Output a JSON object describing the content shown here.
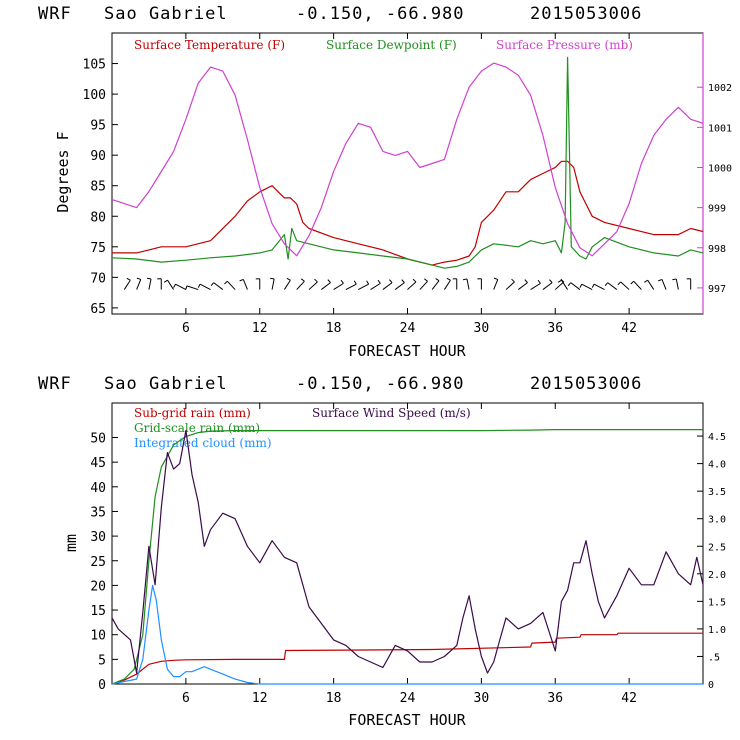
{
  "colors": {
    "temperature": "#c00000",
    "dewpoint": "#1f8f1f",
    "pressure": "#d040d0",
    "subgrid_rain": "#c00000",
    "gridscale_rain": "#1f8f1f",
    "integrated_cloud": "#1e90ff",
    "wind_speed": "#3a0a4a",
    "axis": "#000000"
  },
  "chart_data": [
    {
      "type": "line",
      "header": {
        "model": "WRF",
        "station": "Sao Gabriel",
        "coords": "-0.150, -66.980",
        "init_time": "2015053006"
      },
      "xlabel": "FORECAST HOUR",
      "ylabel": "Degrees F",
      "xlim": [
        0,
        48
      ],
      "x_ticks": [
        6,
        12,
        18,
        24,
        30,
        36,
        42
      ],
      "ylim": [
        64,
        110
      ],
      "y_ticks": [
        65,
        70,
        75,
        80,
        85,
        90,
        95,
        100,
        105
      ],
      "y2lim": [
        996.35,
        1003.35
      ],
      "y2_ticks": [
        997,
        998,
        999,
        1000,
        1001,
        1002
      ],
      "legend": [
        "Surface Temperature (F)",
        "Surface Dewpoint (F)",
        "Surface Pressure (mb)"
      ],
      "series": [
        {
          "name": "Surface Temperature (F)",
          "axis": "left",
          "x": [
            0,
            2,
            3,
            4,
            6,
            8,
            10,
            11,
            12,
            13,
            13.5,
            14,
            14.5,
            15,
            15.5,
            16,
            18,
            20,
            22,
            24,
            26,
            27,
            28,
            29,
            29.5,
            30,
            31,
            32,
            33,
            34,
            35,
            36,
            36.5,
            37,
            37.5,
            38,
            38.5,
            39,
            40,
            42,
            44,
            46,
            47,
            48
          ],
          "values": [
            74,
            74,
            74.5,
            75,
            75,
            76,
            80,
            82.5,
            84,
            85,
            84,
            83,
            83,
            82,
            79,
            78,
            76.5,
            75.5,
            74.5,
            73,
            72,
            72.5,
            72.8,
            73.5,
            75,
            79,
            81,
            84,
            84,
            86,
            87,
            88,
            89,
            89,
            88,
            84,
            82,
            80,
            79,
            78,
            77,
            77,
            78,
            77.5
          ]
        },
        {
          "name": "Surface Dewpoint (F)",
          "axis": "left",
          "x": [
            0,
            2,
            4,
            6,
            8,
            10,
            12,
            13,
            14,
            14.3,
            14.6,
            15,
            16,
            18,
            20,
            22,
            24,
            26,
            27,
            28,
            29,
            30,
            31,
            33,
            34,
            35,
            36,
            36.5,
            36.8,
            37,
            37.3,
            38,
            38.5,
            39,
            40,
            42,
            44,
            46,
            47,
            48
          ],
          "values": [
            73.2,
            73,
            72.5,
            72.8,
            73.2,
            73.5,
            74,
            74.5,
            77,
            73,
            78,
            76,
            75.5,
            74.5,
            74,
            73.5,
            73,
            72,
            71.5,
            71.8,
            72.5,
            74.5,
            75.5,
            75,
            76,
            75.5,
            76,
            74,
            79,
            106,
            75,
            73.5,
            73,
            75,
            76.5,
            75,
            74,
            73.5,
            74.5,
            74
          ]
        },
        {
          "name": "Surface Pressure (mb)",
          "axis": "right",
          "x": [
            0,
            1,
            2,
            3,
            4,
            5,
            6,
            7,
            8,
            9,
            10,
            11,
            12,
            13,
            14,
            15,
            16,
            17,
            18,
            19,
            20,
            21,
            22,
            23,
            24,
            25,
            26,
            27,
            28,
            29,
            30,
            31,
            32,
            33,
            34,
            35,
            36,
            37,
            38,
            39,
            40,
            41,
            42,
            43,
            44,
            45,
            46,
            47,
            48
          ],
          "values": [
            999.2,
            999.1,
            999.0,
            999.4,
            999.9,
            1000.4,
            1001.2,
            1002.1,
            1002.5,
            1002.4,
            1001.8,
            1000.7,
            999.5,
            998.6,
            998.1,
            997.8,
            998.3,
            999.0,
            999.9,
            1000.6,
            1001.1,
            1001.0,
            1000.4,
            1000.3,
            1000.4,
            1000.0,
            1000.1,
            1000.2,
            1001.2,
            1002.0,
            1002.4,
            1002.6,
            1002.5,
            1002.3,
            1001.8,
            1000.8,
            999.5,
            998.6,
            998.0,
            997.8,
            998.1,
            998.4,
            999.1,
            1000.1,
            1000.8,
            1001.2,
            1001.5,
            1001.2,
            1001.1
          ]
        }
      ],
      "wind_barbs": {
        "x": [
          1,
          2,
          3,
          4,
          5,
          6,
          7,
          8,
          9,
          10,
          11,
          12,
          13,
          14,
          15,
          16,
          17,
          18,
          19,
          20,
          21,
          22,
          23,
          24,
          25,
          26,
          27,
          28,
          29,
          30,
          31,
          32,
          33,
          34,
          35,
          36,
          37,
          38,
          39,
          40,
          41,
          42,
          43,
          44,
          45,
          46,
          47
        ],
        "direction_deg": [
          60,
          70,
          80,
          90,
          120,
          150,
          160,
          150,
          140,
          130,
          110,
          90,
          80,
          60,
          50,
          45,
          40,
          35,
          30,
          30,
          35,
          40,
          40,
          45,
          50,
          55,
          60,
          90,
          100,
          90,
          70,
          45,
          40,
          35,
          40,
          45,
          120,
          140,
          150,
          150,
          140,
          135,
          130,
          120,
          110,
          100,
          90
        ]
      }
    },
    {
      "type": "line",
      "header": {
        "model": "WRF",
        "station": "Sao Gabriel",
        "coords": "-0.150, -66.980",
        "init_time": "2015053006"
      },
      "xlabel": "FORECAST HOUR",
      "ylabel": "mm",
      "xlim": [
        0,
        48
      ],
      "x_ticks": [
        6,
        12,
        18,
        24,
        30,
        36,
        42
      ],
      "ylim": [
        0,
        57
      ],
      "y_ticks": [
        0,
        5,
        10,
        15,
        20,
        25,
        30,
        35,
        40,
        45,
        50
      ],
      "y2lim": [
        0,
        5.1
      ],
      "y2_ticks": [
        "0",
        ".5",
        "1.0",
        "1.5",
        "2.0",
        "2.5",
        "3.0",
        "3.5",
        "4.0",
        "4.5"
      ],
      "legend": [
        "Sub-grid rain (mm)",
        "Surface Wind Speed (m/s)",
        "Grid-scale rain (mm)",
        "Integrated cloud (mm)"
      ],
      "series": [
        {
          "name": "Sub-grid rain (mm)",
          "axis": "left",
          "x": [
            0,
            1,
            2,
            3,
            4,
            5,
            6,
            10,
            14,
            14.1,
            26,
            34,
            34.1,
            36,
            36.1,
            38,
            38.1,
            41,
            41.1,
            48
          ],
          "values": [
            0,
            0.8,
            2,
            4,
            4.6,
            4.8,
            4.9,
            5,
            5,
            6.8,
            7,
            7.5,
            8.3,
            8.5,
            9.3,
            9.5,
            10,
            10,
            10.3,
            10.3
          ]
        },
        {
          "name": "Grid-scale rain (mm)",
          "axis": "left",
          "x": [
            0,
            1,
            1.8,
            2.5,
            3,
            3.5,
            4,
            5,
            6,
            7,
            8,
            10,
            20,
            30,
            34,
            36,
            48
          ],
          "values": [
            0,
            1,
            3,
            10,
            25,
            38,
            44,
            48.5,
            50.2,
            51,
            51.3,
            51.4,
            51.4,
            51.4,
            51.5,
            51.6,
            51.6
          ]
        },
        {
          "name": "Integrated cloud (mm)",
          "axis": "left",
          "x": [
            0,
            1,
            2,
            2.5,
            3,
            3.3,
            3.6,
            4,
            4.5,
            5,
            5.5,
            6,
            6.5,
            7,
            7.5,
            8,
            9,
            10,
            11,
            12,
            48
          ],
          "values": [
            0,
            0.5,
            1,
            5,
            15,
            20,
            17,
            9,
            3,
            1.5,
            1.5,
            2.5,
            2.5,
            3,
            3.5,
            3,
            2,
            1,
            0.3,
            0,
            0
          ]
        },
        {
          "name": "Surface Wind Speed (m/s)",
          "axis": "right",
          "x": [
            0,
            0.5,
            1,
            1.5,
            2,
            2.5,
            3,
            3.5,
            4,
            4.5,
            5,
            5.5,
            6,
            6.5,
            7,
            7.5,
            8,
            9,
            10,
            11,
            12,
            13,
            14,
            15,
            16,
            17,
            18,
            19,
            20,
            21,
            22,
            23,
            24,
            25,
            26,
            27,
            28,
            28.5,
            29,
            29.5,
            30,
            30.5,
            31,
            31.5,
            32,
            33,
            34,
            35,
            36,
            36.5,
            37,
            37.5,
            38,
            38.5,
            39,
            39.5,
            40,
            41,
            42,
            43,
            44,
            45,
            46,
            47,
            47.5,
            48
          ],
          "values": [
            1.2,
            1.0,
            0.9,
            0.8,
            0.2,
            1.3,
            2.5,
            1.8,
            3.2,
            4.2,
            3.9,
            4.0,
            4.6,
            3.8,
            3.3,
            2.5,
            2.8,
            3.1,
            3.0,
            2.5,
            2.2,
            2.6,
            2.3,
            2.2,
            1.4,
            1.1,
            0.8,
            0.7,
            0.5,
            0.4,
            0.3,
            0.7,
            0.6,
            0.4,
            0.4,
            0.5,
            0.7,
            1.2,
            1.6,
            1.0,
            0.5,
            0.2,
            0.4,
            0.8,
            1.2,
            1.0,
            1.1,
            1.3,
            0.6,
            1.5,
            1.7,
            2.2,
            2.2,
            2.6,
            2.0,
            1.5,
            1.2,
            1.6,
            2.1,
            1.8,
            1.8,
            2.4,
            2.0,
            1.8,
            2.3,
            1.8
          ]
        }
      ]
    }
  ]
}
